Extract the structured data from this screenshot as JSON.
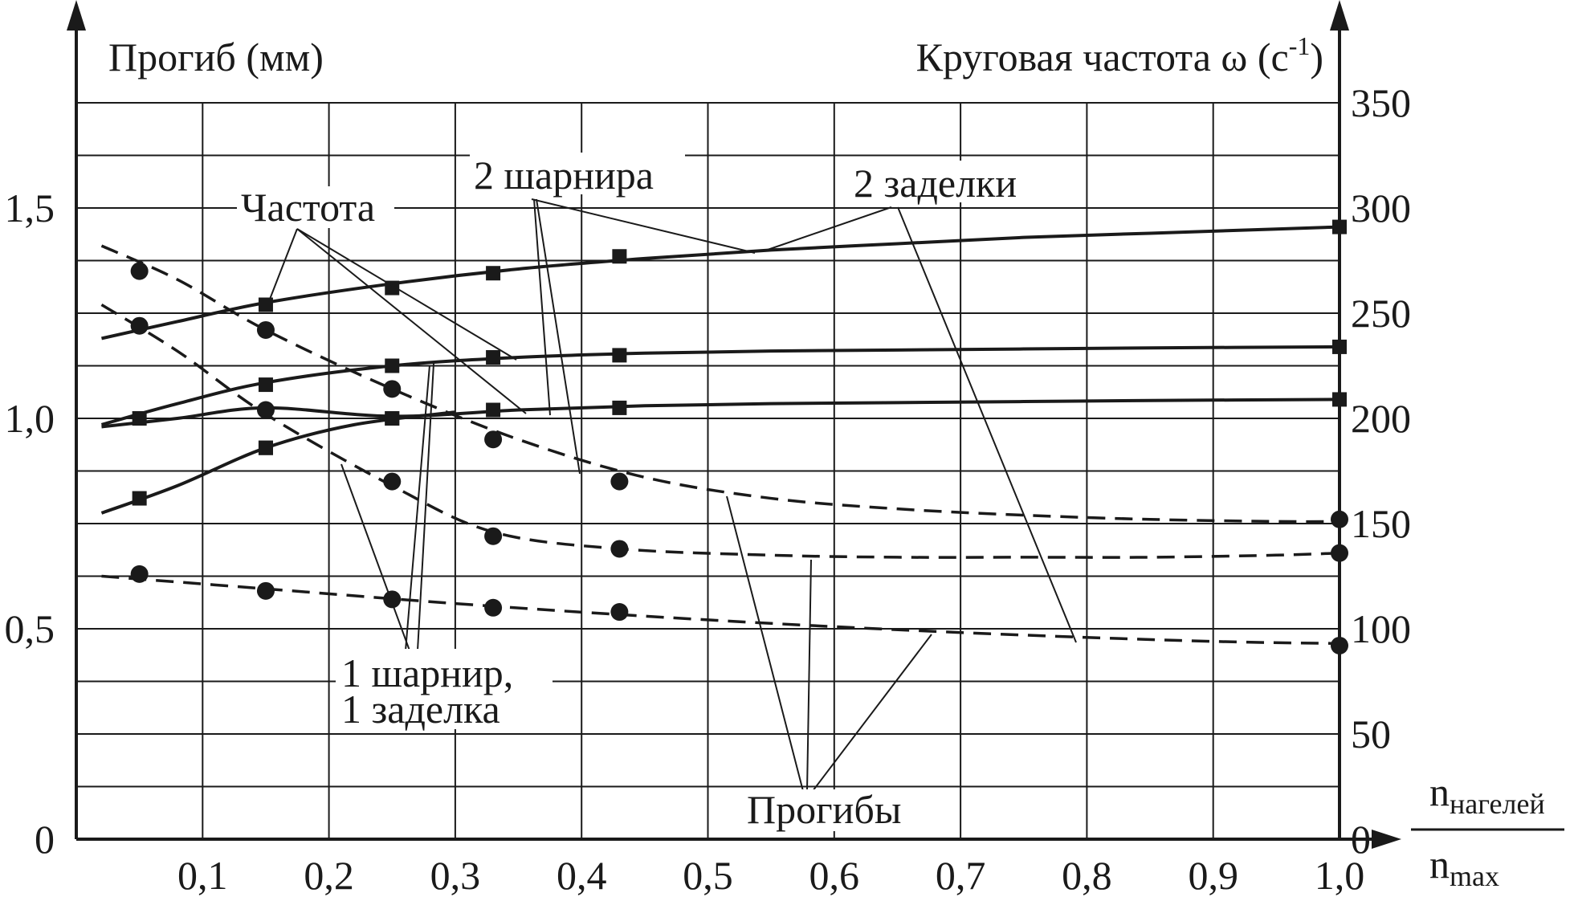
{
  "chart_data": {
    "type": "line",
    "title": "",
    "xlabel_num": "n",
    "xlabel_num_sub": "нагелей",
    "xlabel_den": "n",
    "xlabel_den_sub": "max",
    "ylabel_left": "Прогиб (мм)",
    "ylabel_right_main": "Круговая частота ω (c",
    "ylabel_right_sup": "-1",
    "ylabel_right_tail": ")",
    "xlim": [
      0,
      1.0
    ],
    "ylim_left": [
      0,
      1.75
    ],
    "ylim_right": [
      0,
      350
    ],
    "x_ticks": [
      "0,1",
      "0,2",
      "0,3",
      "0,4",
      "0,5",
      "0,6",
      "0,7",
      "0,8",
      "0,9",
      "1,0"
    ],
    "x_tick_values": [
      0.1,
      0.2,
      0.3,
      0.4,
      0.5,
      0.6,
      0.7,
      0.8,
      0.9,
      1.0
    ],
    "y_left_ticks": [
      "0",
      "0,5",
      "1,0",
      "1,5"
    ],
    "y_left_tick_values": [
      0,
      0.5,
      1.0,
      1.5
    ],
    "y_right_ticks": [
      "0",
      "50",
      "100",
      "150",
      "200",
      "250",
      "300",
      "350"
    ],
    "y_right_tick_values": [
      0,
      50,
      100,
      150,
      200,
      250,
      300,
      350
    ],
    "grid": true,
    "annotations": {
      "frequency": "Частота",
      "two_hinges": "2 шарнира",
      "two_clamps": "2 заделки",
      "hinge_clamp_line1": "1 шарнир,",
      "hinge_clamp_line2": "1 заделка",
      "deflections": "Прогибы"
    },
    "series": [
      {
        "group": "frequency",
        "support": "2 clamps",
        "axis": "right",
        "style": "solid",
        "marker": "square",
        "x": [
          0.15,
          0.25,
          0.33,
          0.43,
          1.0
        ],
        "y": [
          254,
          262,
          269,
          277,
          291
        ],
        "curve_x": [
          0.02,
          0.08,
          0.15,
          0.25,
          0.35,
          0.45,
          0.55,
          0.65,
          0.75,
          0.85,
          0.95,
          1.0
        ],
        "curve_y": [
          238,
          246,
          255,
          264,
          271,
          276,
          280,
          283,
          286,
          288,
          290,
          291
        ]
      },
      {
        "group": "frequency",
        "support": "1 hinge, 1 clamp",
        "axis": "right",
        "style": "solid",
        "marker": "square",
        "x": [
          0.15,
          0.25,
          0.33,
          0.43,
          1.0
        ],
        "y": [
          216,
          225,
          229,
          230,
          234
        ],
        "curve_x": [
          0.02,
          0.08,
          0.15,
          0.25,
          0.35,
          0.45,
          0.55,
          0.65,
          0.75,
          0.85,
          1.0
        ],
        "curve_y": [
          197,
          207,
          217,
          225,
          229,
          231,
          232,
          232.5,
          233,
          233.5,
          234
        ]
      },
      {
        "group": "frequency",
        "support": "2 hinges",
        "axis": "right",
        "style": "solid",
        "marker": "square",
        "x": [
          0.05,
          0.15,
          0.25,
          0.33,
          0.43,
          1.0
        ],
        "y": [
          200,
          186,
          200,
          204,
          205,
          209
        ],
        "curve_x": [
          0.02,
          0.08,
          0.15,
          0.25,
          0.35,
          0.45,
          0.55,
          0.65,
          0.75,
          0.85,
          1.0
        ],
        "curve_y": [
          196,
          200,
          205,
          201,
          204,
          206,
          207,
          207.5,
          208,
          208.5,
          209
        ]
      },
      {
        "group": "frequency",
        "support": "2 hinges (lower branch)",
        "axis": "right",
        "style": "solid",
        "marker": "square",
        "x": [
          0.05,
          0.15,
          0.25
        ],
        "y": [
          162,
          186,
          200
        ],
        "curve_x": [
          0.02,
          0.08,
          0.15,
          0.22,
          0.3
        ],
        "curve_y": [
          155,
          168,
          186,
          197,
          203
        ]
      },
      {
        "group": "deflection",
        "support": "2 hinges",
        "axis": "left",
        "style": "dashed",
        "marker": "circle",
        "x": [
          0.05,
          0.15,
          0.25,
          0.33,
          0.43,
          1.0
        ],
        "y": [
          1.35,
          1.21,
          1.07,
          0.95,
          0.85,
          0.76
        ],
        "curve_x": [
          0.02,
          0.08,
          0.15,
          0.25,
          0.35,
          0.45,
          0.55,
          0.65,
          0.75,
          0.85,
          0.95,
          1.0
        ],
        "curve_y": [
          1.41,
          1.33,
          1.21,
          1.07,
          0.95,
          0.86,
          0.81,
          0.785,
          0.77,
          0.76,
          0.755,
          0.755
        ]
      },
      {
        "group": "deflection",
        "support": "1 hinge, 1 clamp",
        "axis": "left",
        "style": "dashed",
        "marker": "circle",
        "x": [
          0.05,
          0.15,
          0.25,
          0.33,
          0.43,
          1.0
        ],
        "y": [
          1.22,
          1.02,
          0.85,
          0.72,
          0.69,
          0.68
        ],
        "curve_x": [
          0.02,
          0.08,
          0.15,
          0.25,
          0.33,
          0.43,
          0.55,
          0.65,
          0.75,
          0.85,
          0.95,
          1.0
        ],
        "curve_y": [
          1.27,
          1.16,
          1.01,
          0.84,
          0.73,
          0.69,
          0.675,
          0.67,
          0.67,
          0.67,
          0.675,
          0.68
        ]
      },
      {
        "group": "deflection",
        "support": "2 clamps",
        "axis": "left",
        "style": "dashed",
        "marker": "circle",
        "x": [
          0.05,
          0.15,
          0.25,
          0.33,
          0.43,
          1.0
        ],
        "y": [
          0.63,
          0.59,
          0.57,
          0.55,
          0.54,
          0.46
        ],
        "curve_x": [
          0.02,
          0.15,
          0.3,
          0.45,
          0.6,
          0.75,
          0.9,
          1.0
        ],
        "curve_y": [
          0.625,
          0.595,
          0.56,
          0.53,
          0.505,
          0.485,
          0.47,
          0.465
        ]
      }
    ]
  }
}
